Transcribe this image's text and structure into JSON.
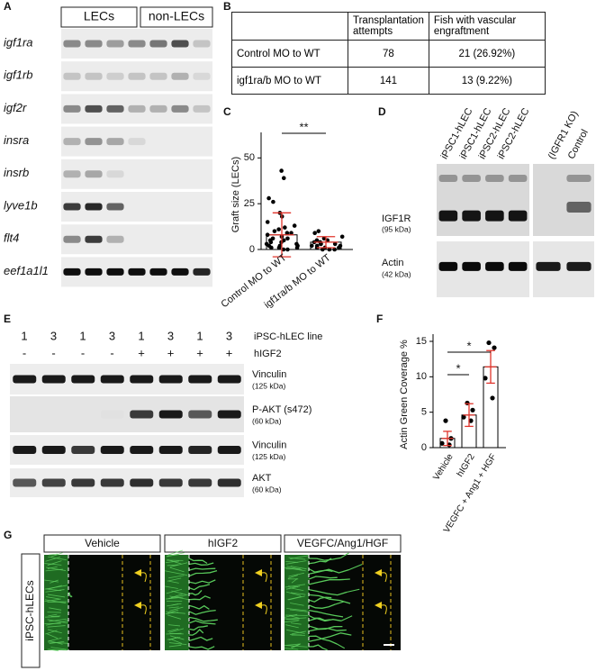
{
  "panel_labels": [
    "A",
    "B",
    "C",
    "D",
    "E",
    "F",
    "G"
  ],
  "panel_a": {
    "groups": [
      "LECs",
      "non-LECs"
    ],
    "genes": [
      "igf1ra",
      "igf1rb",
      "igf2r",
      "insra",
      "insrb",
      "lyve1b",
      "flt4",
      "eef1a1l1"
    ]
  },
  "panel_b": {
    "header": [
      "Transplantation attempts",
      "Fish with vascular engraftment"
    ],
    "rows": [
      [
        "Control MO to WT",
        78,
        "21 (26.92%)"
      ],
      [
        "igf1ra/b MO to WT",
        141,
        "13 (9.22%)"
      ]
    ]
  },
  "panel_d": {
    "lanes": [
      "iPSC1-hLEC",
      "iPSC1-hLEC",
      "iPSC2-hLEC",
      "iPSC2-hLEC",
      "(IGFR1 KO)",
      "Control"
    ],
    "bands": [
      {
        "name": "IGF1R",
        "size": "(95 kDa)"
      },
      {
        "name": "Actin",
        "size": "(42 kDa)"
      }
    ]
  },
  "panel_e": {
    "lines": [
      1,
      3,
      1,
      3,
      1,
      3,
      1,
      3
    ],
    "line_label": "iPSC-hLEC line",
    "treatment": [
      "-",
      "-",
      "-",
      "-",
      "+",
      "+",
      "+",
      "+"
    ],
    "treatment_label": "hIGF2",
    "blots": [
      {
        "name": "Vinculin",
        "size": "(125 kDa)"
      },
      {
        "name": "P-AKT (s472)",
        "size": "(60 kDa)"
      },
      {
        "name": "Vinculin",
        "size": "(125 kDa)"
      },
      {
        "name": "AKT",
        "size": "(60 kDa)"
      }
    ]
  },
  "panel_g": {
    "row_label": "iPSC-hLECs",
    "conditions": [
      "Vehicle",
      "hIGF2",
      "VEGFC/Ang1/HGF"
    ]
  },
  "chart_data": [
    {
      "type": "bar",
      "ylabel": "Graft size (LECs)",
      "categories": [
        "Control MO to WT",
        "igf1ra/b MO to WT"
      ],
      "values": [
        8,
        4
      ],
      "errors": [
        12,
        3
      ],
      "points": [
        [
          43,
          39,
          28,
          26,
          20,
          18,
          15,
          13,
          12,
          11,
          10,
          9,
          9,
          8,
          7,
          6,
          6,
          5,
          5,
          4,
          4,
          3,
          3,
          2,
          2,
          2,
          1,
          1,
          1,
          0,
          0
        ],
        [
          10,
          9,
          7,
          6,
          5,
          5,
          4,
          4,
          3,
          3,
          3,
          2,
          2,
          2,
          1,
          1,
          1,
          0,
          0,
          0
        ]
      ],
      "significance": [
        "**"
      ],
      "ylim": [
        0,
        60
      ],
      "yticks": [
        0,
        25,
        50
      ],
      "color": "#ffffff",
      "error_color": "#e0342b"
    },
    {
      "type": "bar",
      "ylabel": "Actin Green Coverage %",
      "categories": [
        "Vehicle",
        "hIGF2",
        "VEGFC + Ang1 + HGF"
      ],
      "values": [
        1.3,
        4.6,
        11.4
      ],
      "errors": [
        1.0,
        1.6,
        2.3
      ],
      "points": [
        [
          3.8,
          1.3,
          0.6,
          0.4
        ],
        [
          6.3,
          5.3,
          4.3,
          3.8
        ],
        [
          14.8,
          14.1,
          9.8,
          7.0
        ]
      ],
      "significance": [
        "*",
        "*"
      ],
      "ylim": [
        0,
        15
      ],
      "yticks": [
        0,
        5,
        10,
        15
      ],
      "color": "#ffffff",
      "error_color": "#e0342b"
    }
  ]
}
